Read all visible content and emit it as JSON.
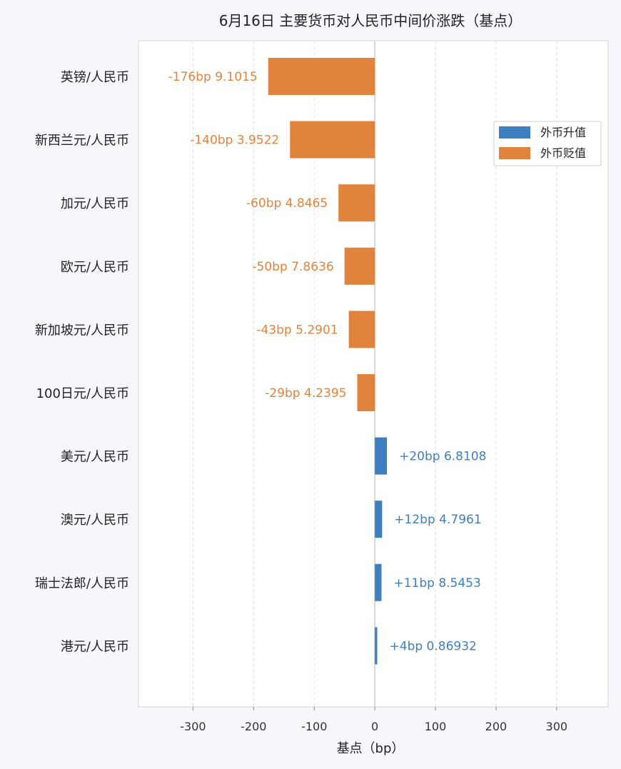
{
  "chart_data": {
    "type": "bar",
    "orientation": "horizontal",
    "title": "6月16日 主要货币对人民币中间价涨跌（基点）",
    "xlabel": "基点（bp）",
    "ylabel": "",
    "xlim": [
      -390,
      385
    ],
    "xticks": [
      -300,
      -200,
      -100,
      0,
      100,
      200,
      300
    ],
    "grid": "vertical-dashed",
    "legend_position": "top-right",
    "colors": {
      "up": "#3d7fbf",
      "down": "#e0843d"
    },
    "legend": [
      {
        "label": "外币升值",
        "color_key": "up"
      },
      {
        "label": "外币贬值",
        "color_key": "down"
      }
    ],
    "categories": [
      "英镑/人民币",
      "新西兰元/人民币",
      "加元/人民币",
      "欧元/人民币",
      "新加坡元/人民币",
      "100日元/人民币",
      "美元/人民币",
      "澳元/人民币",
      "瑞士法郎/人民币",
      "港元/人民币"
    ],
    "values": [
      -176,
      -140,
      -60,
      -50,
      -43,
      -29,
      20,
      12,
      11,
      4
    ],
    "rates": [
      "9.1015",
      "3.9522",
      "4.8465",
      "7.8636",
      "5.2901",
      "4.2395",
      "6.8108",
      "4.7961",
      "8.5453",
      "0.86932"
    ],
    "data_labels": [
      "-176bp  9.1015",
      "-140bp  3.9522",
      "-60bp  4.8465",
      "-50bp  7.8636",
      "-43bp  5.2901",
      "-29bp  4.2395",
      "+20bp  6.8108",
      "+12bp  4.7961",
      "+11bp  8.5453",
      "+4bp  0.86932"
    ]
  }
}
